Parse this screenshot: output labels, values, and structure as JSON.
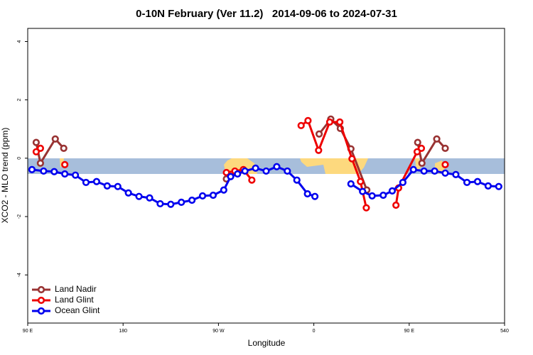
{
  "chart_data": {
    "type": "line",
    "title": "0-10N February (Ver 11.2)   2014-09-06 to 2024-07-31",
    "xlabel": "Longitude",
    "ylabel": "XCO2 - MLO trend (ppm)",
    "xlim": [
      90,
      540
    ],
    "ylim": [
      -5.65,
      4.45
    ],
    "xticks": [
      {
        "value": 90,
        "label": "90 E"
      },
      180,
      {
        "value": 270,
        "label": "90 W"
      },
      {
        "value": 360,
        "label": "0"
      },
      {
        "value": 450,
        "label": "90 E"
      },
      540
    ],
    "yticks": [
      -4,
      -2,
      0,
      2,
      4
    ],
    "legend": "bottom-left",
    "series": [
      {
        "name": "Land Nadir",
        "color": "#993333",
        "x": [
          98,
          102,
          116,
          124,
          200,
          277.5,
          286,
          330,
          365,
          376,
          385,
          395,
          410,
          430,
          458,
          462,
          476,
          484
        ],
        "values": [
          0.54,
          -0.17,
          0.66,
          0.34,
          null,
          -0.71,
          -0.49,
          null,
          0.83,
          1.34,
          1.02,
          0.32,
          -1.09,
          null,
          0.54,
          -0.17,
          0.66,
          0.34
        ]
      },
      {
        "name": "Land Glint",
        "color": "#ee0000",
        "x": [
          98,
          102,
          110,
          125,
          200,
          277.5,
          285.5,
          293.5,
          301.5,
          330,
          348,
          354.5,
          364.5,
          375,
          384.5,
          396,
          404,
          409.5,
          420,
          437.5,
          440,
          457.5,
          461.5,
          470,
          484
        ],
        "values": [
          0.22,
          0.34,
          null,
          -0.22,
          null,
          -0.49,
          -0.44,
          -0.39,
          -0.75,
          null,
          1.12,
          1.29,
          0.27,
          1.24,
          1.24,
          -0.02,
          -0.8,
          -1.7,
          null,
          -1.61,
          -1.02,
          0.22,
          0.34,
          null,
          -0.22
        ]
      },
      {
        "name": "Ocean Glint",
        "color": "#0000ee",
        "x": [
          94,
          105,
          115,
          125,
          135,
          145,
          155,
          165,
          175,
          185,
          195,
          205,
          215,
          225,
          235,
          245,
          255,
          265,
          275,
          281.5,
          288,
          295,
          305,
          315,
          325,
          335,
          344,
          354,
          361,
          378,
          395,
          406,
          415,
          425.5,
          434,
          444,
          454,
          464,
          474,
          484,
          494,
          504.5,
          514.5,
          524.5,
          534.5
        ],
        "values": [
          -0.39,
          -0.44,
          -0.46,
          -0.54,
          -0.58,
          -0.83,
          -0.8,
          -0.95,
          -0.97,
          -1.19,
          -1.31,
          -1.36,
          -1.56,
          -1.58,
          -1.51,
          -1.44,
          -1.29,
          -1.27,
          -1.09,
          -0.63,
          -0.54,
          -0.44,
          -0.34,
          -0.44,
          -0.29,
          -0.44,
          -0.75,
          -1.22,
          -1.31,
          null,
          -0.88,
          -1.14,
          -1.29,
          -1.27,
          -1.12,
          -0.83,
          -0.39,
          -0.44,
          -0.44,
          -0.51,
          -0.56,
          -0.83,
          -0.8,
          -0.95,
          -0.97
        ]
      }
    ]
  }
}
